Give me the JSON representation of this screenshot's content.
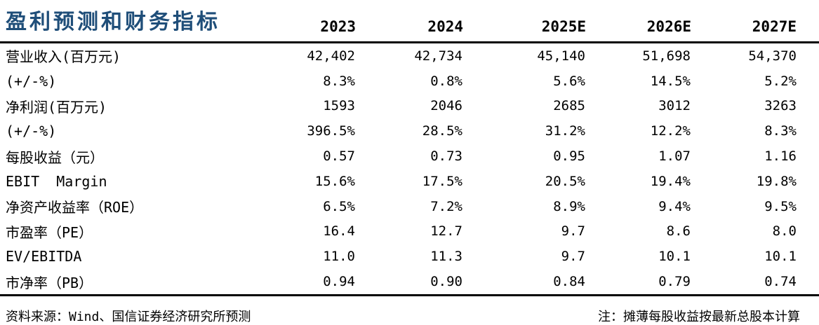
{
  "table": {
    "title": "盈利预测和财务指标",
    "columns": [
      "2023",
      "2024",
      "2025E",
      "2026E",
      "2027E"
    ],
    "rows": [
      {
        "label": "营业收入(百万元)",
        "values": [
          "42,402",
          "42,734",
          "45,140",
          "51,698",
          "54,370"
        ]
      },
      {
        "label": "(+/-%)",
        "values": [
          "8.3%",
          "0.8%",
          "5.6%",
          "14.5%",
          "5.2%"
        ]
      },
      {
        "label": "净利润(百万元)",
        "values": [
          "1593",
          "2046",
          "2685",
          "3012",
          "3263"
        ]
      },
      {
        "label": "(+/-%)",
        "values": [
          "396.5%",
          "28.5%",
          "31.2%",
          "12.2%",
          "8.3%"
        ]
      },
      {
        "label": "每股收益（元）",
        "values": [
          "0.57",
          "0.73",
          "0.95",
          "1.07",
          "1.16"
        ]
      },
      {
        "label": "EBIT  Margin",
        "values": [
          "15.6%",
          "17.5%",
          "20.5%",
          "19.4%",
          "19.8%"
        ]
      },
      {
        "label": "净资产收益率（ROE）",
        "values": [
          "6.5%",
          "7.2%",
          "8.9%",
          "9.4%",
          "9.5%"
        ]
      },
      {
        "label": "市盈率（PE）",
        "values": [
          "16.4",
          "12.7",
          "9.7",
          "8.6",
          "8.0"
        ]
      },
      {
        "label": "EV/EBITDA",
        "values": [
          "11.0",
          "11.3",
          "9.7",
          "10.1",
          "10.1"
        ]
      },
      {
        "label": "市净率（PB）",
        "values": [
          "0.94",
          "0.90",
          "0.84",
          "0.79",
          "0.74"
        ]
      }
    ],
    "source_note": "资料来源：Wind、国信证券经济研究所预测",
    "right_note": "注：摊薄每股收益按最新总股本计算"
  },
  "colors": {
    "title": "#1F4E79",
    "rule": "#000000",
    "text": "#000000"
  }
}
